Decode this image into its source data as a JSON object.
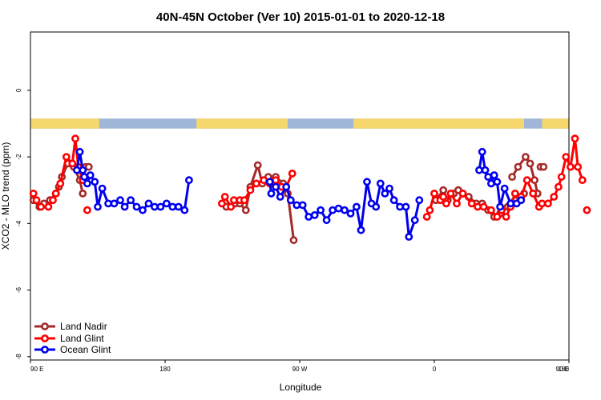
{
  "chart_data": {
    "type": "line",
    "title": "40N-45N October (Ver 10)   2015-01-01 to 2020-12-18",
    "xlabel": "Longitude",
    "ylabel": "XCO2 - MLO trend (ppm)",
    "xlim": [
      90,
      450
    ],
    "ylim": [
      -8.1,
      1.75
    ],
    "x_ticks": [
      {
        "value": 90,
        "label": "90 E"
      },
      {
        "value": 180,
        "label": "180"
      },
      {
        "value": 270,
        "label": "90 W"
      },
      {
        "value": 360,
        "label": "0"
      },
      {
        "value": 450,
        "label": "90 E"
      }
    ],
    "x_tick_extra": {
      "value": 450,
      "label": "180"
    },
    "y_ticks": [
      {
        "value": 0,
        "label": "0"
      },
      {
        "value": -2,
        "label": "-2"
      },
      {
        "value": -4,
        "label": "-4"
      },
      {
        "value": -6,
        "label": "-6"
      },
      {
        "value": -8,
        "label": "-8"
      }
    ],
    "land_strip": {
      "y_range": [
        -1.15,
        -0.85
      ],
      "land_color": "#f5d76e",
      "ocean_color": "#9fb6d9",
      "land_segments": [
        [
          90,
          136
        ],
        [
          201,
          262
        ],
        [
          306,
          420
        ],
        [
          432,
          450
        ]
      ]
    },
    "legend": {
      "position": "bottom-left",
      "entries": [
        "Land Nadir",
        "Land Glint",
        "Ocean Glint"
      ]
    },
    "series": [
      {
        "name": "Land Nadir",
        "color": "#a52a2a",
        "segments": [
          [
            [
              92,
              -3.3
            ],
            [
              96,
              -3.5
            ],
            [
              99,
              -3.4
            ],
            [
              103,
              -3.3
            ],
            [
              107,
              -3.1
            ],
            [
              109,
              -2.9
            ],
            [
              111,
              -2.6
            ],
            [
              115,
              -2.2
            ],
            [
              119,
              -2.3
            ],
            [
              123,
              -2.7
            ],
            [
              125,
              -3.1
            ]
          ],
          [
            [
              127,
              -2.3
            ],
            [
              129,
              -2.3
            ]
          ],
          [
            [
              221,
              -3.5
            ],
            [
              227,
              -3.4
            ],
            [
              230,
              -3.4
            ],
            [
              234,
              -3.6
            ],
            [
              237,
              -2.9
            ],
            [
              242,
              -2.25
            ],
            [
              245,
              -2.8
            ],
            [
              249,
              -2.6
            ],
            [
              254,
              -2.6
            ],
            [
              259,
              -2.8
            ],
            [
              262,
              -3.1
            ],
            [
              266,
              -4.5
            ]
          ],
          [
            [
              361,
              -3.3
            ],
            [
              366,
              -3.0
            ],
            [
              369,
              -3.3
            ],
            [
              373,
              -3.1
            ],
            [
              376,
              -3.0
            ],
            [
              379,
              -3.1
            ],
            [
              383,
              -3.2
            ],
            [
              388,
              -3.4
            ],
            [
              392,
              -3.4
            ],
            [
              396,
              -3.6
            ],
            [
              400,
              -3.8
            ],
            [
              404,
              -3.7
            ],
            [
              409,
              -3.5
            ],
            [
              414,
              -3.3
            ],
            [
              420,
              -3.1
            ]
          ],
          [
            [
              412,
              -2.6
            ],
            [
              416,
              -2.3
            ],
            [
              421,
              -2.0
            ],
            [
              424,
              -2.2
            ],
            [
              427,
              -2.7
            ],
            [
              429,
              -3.1
            ]
          ],
          [
            [
              431,
              -2.3
            ],
            [
              433,
              -2.3
            ]
          ]
        ]
      },
      {
        "name": "Land Glint",
        "color": "#ff0000",
        "segments": [
          [
            [
              92,
              -3.1
            ],
            [
              94,
              -3.3
            ],
            [
              97,
              -3.5
            ],
            [
              102,
              -3.5
            ],
            [
              105,
              -3.3
            ],
            [
              107,
              -3.1
            ],
            [
              110,
              -2.8
            ],
            [
              114,
              -2.0
            ],
            [
              118,
              -2.2
            ],
            [
              120,
              -1.45
            ],
            [
              122,
              -2.3
            ],
            [
              125,
              -2.7
            ]
          ],
          [
            [
              128,
              -3.6
            ]
          ],
          [
            [
              218,
              -3.4
            ],
            [
              220,
              -3.2
            ],
            [
              224,
              -3.5
            ],
            [
              226,
              -3.3
            ],
            [
              230,
              -3.3
            ],
            [
              233,
              -3.3
            ],
            [
              237,
              -3.0
            ],
            [
              241,
              -2.8
            ],
            [
              246,
              -2.7
            ],
            [
              250,
              -2.8
            ],
            [
              254,
              -2.7
            ],
            [
              258,
              -2.9
            ],
            [
              261,
              -2.9
            ],
            [
              265,
              -2.5
            ]
          ],
          [
            [
              355,
              -3.8
            ],
            [
              357,
              -3.6
            ],
            [
              360,
              -3.1
            ],
            [
              364,
              -3.3
            ],
            [
              366,
              -3.2
            ],
            [
              368,
              -3.4
            ],
            [
              371,
              -3.1
            ],
            [
              375,
              -3.4
            ],
            [
              379,
              -3.1
            ],
            [
              385,
              -3.4
            ],
            [
              389,
              -3.5
            ],
            [
              393,
              -3.5
            ],
            [
              398,
              -3.6
            ],
            [
              402,
              -3.8
            ],
            [
              405,
              -3.6
            ],
            [
              408,
              -3.8
            ],
            [
              411,
              -3.5
            ],
            [
              414,
              -3.1
            ],
            [
              418,
              -3.2
            ],
            [
              422,
              -2.7
            ],
            [
              426,
              -3.1
            ],
            [
              430,
              -3.5
            ],
            [
              432,
              -3.4
            ],
            [
              436,
              -3.4
            ],
            [
              440,
              -3.2
            ],
            [
              443,
              -2.9
            ],
            [
              445,
              -2.6
            ],
            [
              448,
              -2.0
            ],
            [
              451,
              -2.3
            ],
            [
              454,
              -1.45
            ],
            [
              456,
              -2.3
            ],
            [
              459,
              -2.7
            ]
          ],
          [
            [
              462,
              -3.6
            ]
          ]
        ]
      },
      {
        "name": "Ocean Glint",
        "color": "#0000ee",
        "segments": [
          [
            [
              121,
              -2.4
            ],
            [
              123,
              -1.85
            ],
            [
              125,
              -2.4
            ],
            [
              126,
              -2.6
            ],
            [
              128,
              -2.8
            ],
            [
              130,
              -2.55
            ],
            [
              133,
              -2.75
            ],
            [
              135,
              -3.5
            ],
            [
              138,
              -2.95
            ],
            [
              142,
              -3.4
            ],
            [
              146,
              -3.4
            ],
            [
              150,
              -3.3
            ],
            [
              153,
              -3.5
            ],
            [
              157,
              -3.3
            ],
            [
              161,
              -3.5
            ],
            [
              165,
              -3.6
            ],
            [
              169,
              -3.4
            ],
            [
              173,
              -3.5
            ],
            [
              177,
              -3.5
            ],
            [
              181,
              -3.4
            ],
            [
              185,
              -3.5
            ],
            [
              189,
              -3.5
            ],
            [
              193,
              -3.6
            ],
            [
              196,
              -2.7
            ]
          ],
          [
            [
              250,
              -2.75
            ],
            [
              251,
              -3.1
            ],
            [
              254,
              -2.9
            ],
            [
              257,
              -3.2
            ],
            [
              261,
              -2.9
            ],
            [
              264,
              -3.3
            ],
            [
              268,
              -3.45
            ],
            [
              272,
              -3.45
            ],
            [
              276,
              -3.8
            ],
            [
              280,
              -3.75
            ],
            [
              284,
              -3.6
            ],
            [
              288,
              -3.9
            ],
            [
              292,
              -3.6
            ],
            [
              296,
              -3.55
            ],
            [
              300,
              -3.6
            ],
            [
              304,
              -3.7
            ],
            [
              308,
              -3.5
            ],
            [
              311,
              -4.2
            ],
            [
              315,
              -2.75
            ],
            [
              318,
              -3.4
            ],
            [
              321,
              -3.5
            ],
            [
              324,
              -2.8
            ],
            [
              327,
              -3.1
            ],
            [
              330,
              -2.95
            ],
            [
              333,
              -3.3
            ],
            [
              337,
              -3.5
            ],
            [
              341,
              -3.5
            ],
            [
              343,
              -4.4
            ],
            [
              347,
              -3.9
            ],
            [
              350,
              -3.3
            ]
          ],
          [
            [
              390,
              -2.4
            ],
            [
              392,
              -1.85
            ],
            [
              394,
              -2.4
            ],
            [
              396,
              -2.6
            ],
            [
              398,
              -2.8
            ],
            [
              400,
              -2.55
            ],
            [
              402,
              -2.75
            ],
            [
              404,
              -3.5
            ],
            [
              407,
              -2.95
            ],
            [
              411,
              -3.4
            ],
            [
              415,
              -3.4
            ],
            [
              418,
              -3.3
            ]
          ]
        ]
      }
    ]
  }
}
